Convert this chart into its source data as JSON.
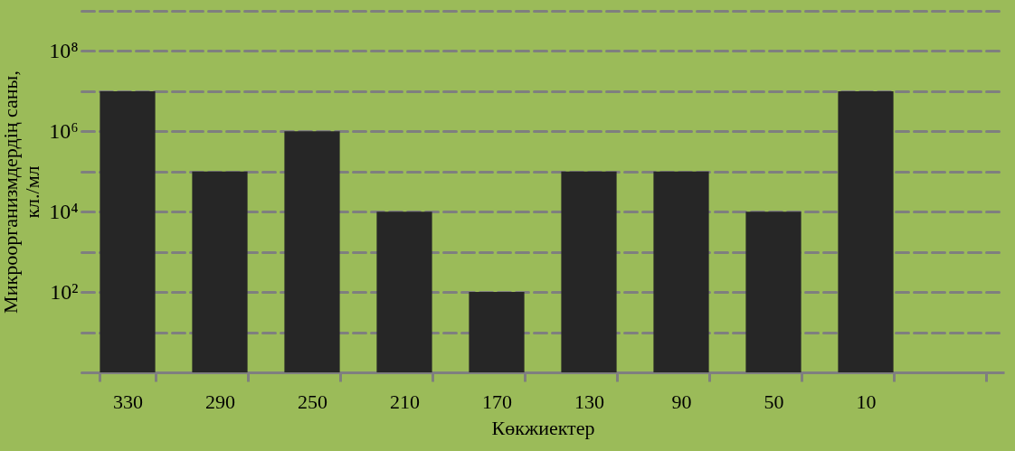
{
  "chart_data": {
    "type": "bar",
    "xlabel": "Көкжиектер",
    "ylabel": "Микроорганизмдердің саны, кл./мл",
    "categories": [
      "330",
      "290",
      "250",
      "210",
      "170",
      "130",
      "90",
      "50",
      "10",
      null
    ],
    "values": [
      10000000,
      100000,
      1000000,
      10000,
      100,
      100000,
      100000,
      10000,
      10000000,
      null
    ],
    "color": "#262626",
    "log": true,
    "grid": "y",
    "ylim": [
      1,
      1000000000
    ],
    "yticks": [
      {
        "value": 1,
        "label": null
      },
      {
        "value": 10,
        "label": null
      },
      {
        "value": 100,
        "label": "10²"
      },
      {
        "value": 1000,
        "label": null
      },
      {
        "value": 10000,
        "label": "10⁴"
      },
      {
        "value": 100000,
        "label": null
      },
      {
        "value": 1000000,
        "label": "10⁶"
      },
      {
        "value": 10000000,
        "label": null
      },
      {
        "value": 100000000,
        "label": "10⁸"
      },
      {
        "value": 1000000000,
        "label": null
      }
    ]
  }
}
